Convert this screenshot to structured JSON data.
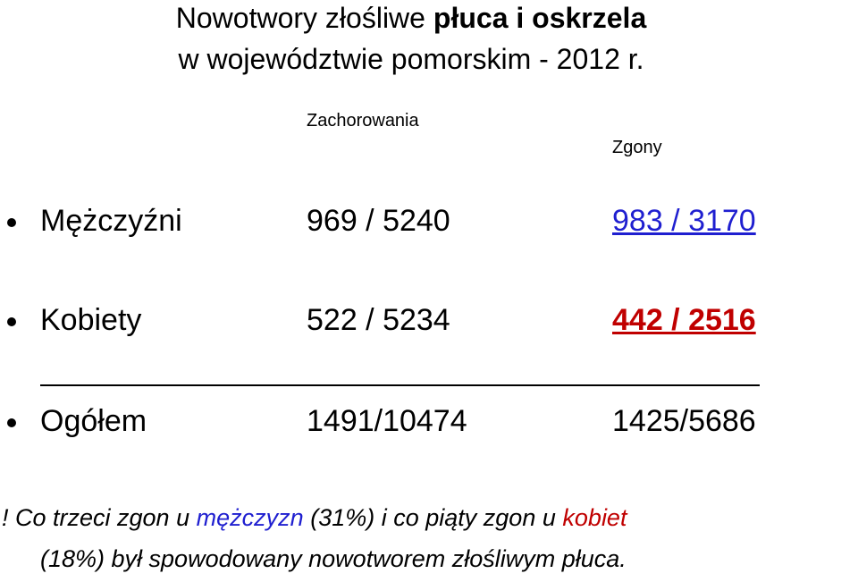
{
  "title": {
    "line1_regular": "Nowotwory złośliwe",
    "line1_bold": "płuca i oskrzela",
    "line2": "w województwie pomorskim - 2012 r."
  },
  "table": {
    "headers": [
      "Zachorowania",
      "Zgony"
    ],
    "rows": [
      [
        "Mężczyźni",
        "969 / 5240",
        "983 / 3170"
      ],
      [
        "Kobiety",
        "522 / 5234",
        "442 / 2516"
      ],
      [
        "Ogółem",
        "1491/10474",
        "1425/5686"
      ]
    ]
  },
  "footnote": {
    "line1": [
      "! Co trzeci zgon u",
      "mężczyzn",
      "(31%) i co piąty zgon u",
      "kobiet"
    ],
    "line2": "(18%) był spowodowany nowotworem złośliwym płuca."
  }
}
